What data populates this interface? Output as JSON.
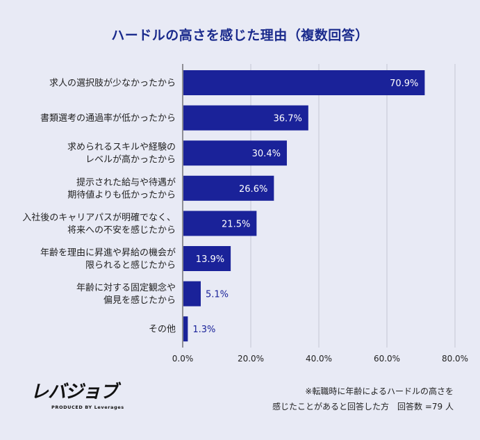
{
  "chart_data": {
    "type": "bar",
    "orientation": "horizontal",
    "title": "ハードルの高さを感じた理由（複数回答）",
    "categories": [
      [
        "求人の選択肢が少なかったから"
      ],
      [
        "書類選考の通過率が低かったから"
      ],
      [
        "求められるスキルや経験の",
        "レベルが高かったから"
      ],
      [
        "提示された給与や待遇が",
        "期待値よりも低かったから"
      ],
      [
        "入社後のキャリアパスが明確でなく、",
        "将来への不安を感じたから"
      ],
      [
        "年齢を理由に昇進や昇給の機会が",
        "限られると感じたから"
      ],
      [
        "年齢に対する固定観念や",
        "偏見を感じたから"
      ],
      [
        "その他"
      ]
    ],
    "values": [
      70.9,
      36.7,
      30.4,
      26.6,
      21.5,
      13.9,
      5.1,
      1.3
    ],
    "value_labels": [
      "70.9%",
      "36.7%",
      "30.4%",
      "26.6%",
      "21.5%",
      "13.9%",
      "5.1%",
      "1.3%"
    ],
    "xlim": [
      0,
      80
    ],
    "xticks": [
      "0.0%",
      "20.0%",
      "40.0%",
      "60.0%",
      "80.0%"
    ],
    "grid": true,
    "bar_color": "#1a2299",
    "inside_label_color": "#ffffff",
    "outside_label_color": "#1a2299",
    "xlabel": "",
    "ylabel": ""
  },
  "logo": {
    "name": "レバジョブ",
    "tagline": "PRODUCED BY Leverages"
  },
  "note": {
    "line1": "※転職時に年齢によるハードルの高さを",
    "line2": "感じたことがあると回答した方　回答数 =79 人"
  }
}
